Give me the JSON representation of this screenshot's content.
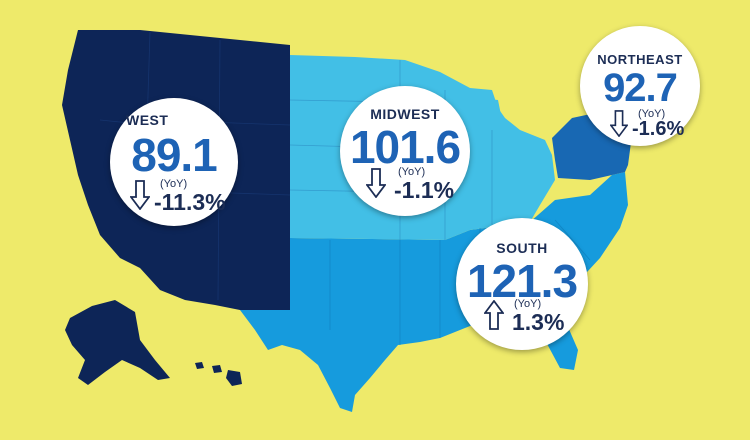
{
  "colors": {
    "background": "#eeea6a",
    "west": "#0d2557",
    "midwest": "#42bfe6",
    "south": "#169bdd",
    "northeast": "#1868b3"
  },
  "regions": {
    "west": {
      "name": "WEST",
      "value": "89.1",
      "yoy_label": "(YoY)",
      "change": "-11.3%",
      "direction": "down"
    },
    "midwest": {
      "name": "MIDWEST",
      "value": "101.6",
      "yoy_label": "(YoY)",
      "change": "-1.1%",
      "direction": "down"
    },
    "northeast": {
      "name": "NORTHEAST",
      "value": "92.7",
      "yoy_label": "(YoY)",
      "change": "-1.6%",
      "direction": "down"
    },
    "south": {
      "name": "SOUTH",
      "value": "121.3",
      "yoy_label": "(YoY)",
      "change": "1.3%",
      "direction": "up"
    }
  }
}
